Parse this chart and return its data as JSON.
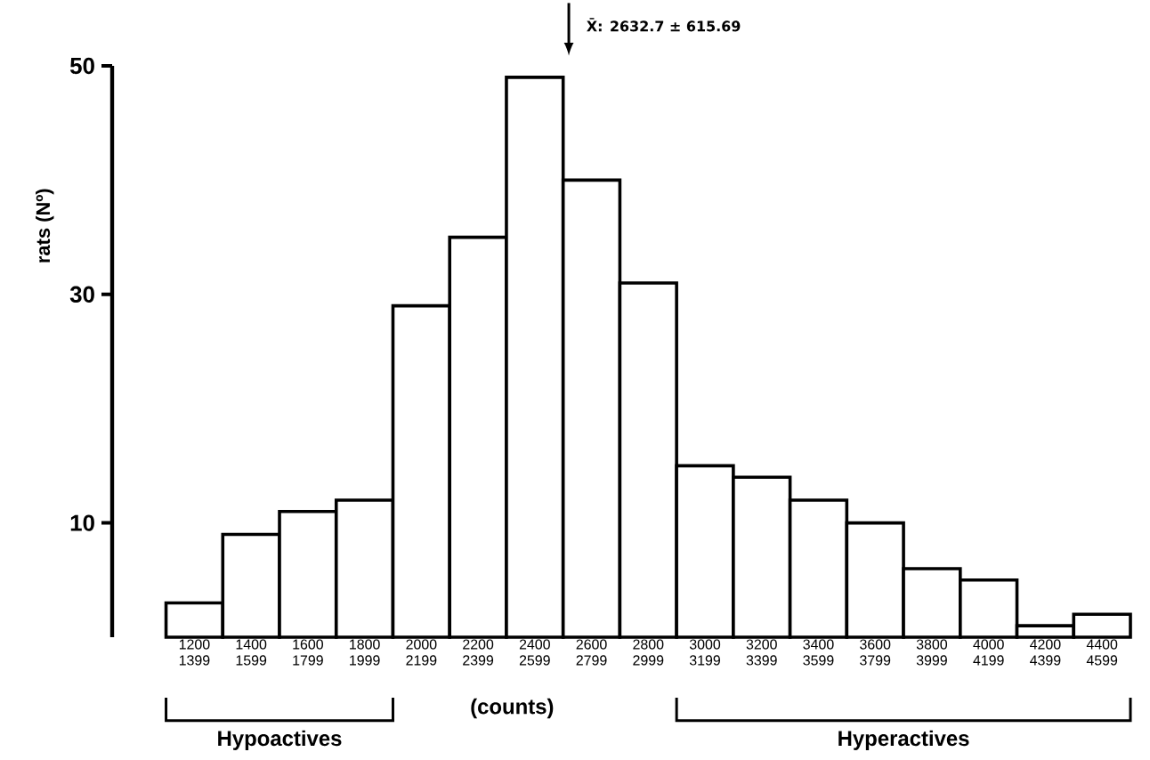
{
  "chart_data": {
    "type": "bar",
    "ylabel": "rats (Nº)",
    "xlabel": "(counts)",
    "categories": [
      "1200 1399",
      "1400 1599",
      "1600 1799",
      "1800 1999",
      "2000 2199",
      "2200 2399",
      "2400 2599",
      "2600 2799",
      "2800 2999",
      "3000 3199",
      "3200 3399",
      "3400 3599",
      "3600 3799",
      "3800 3999",
      "4000 4199",
      "4200 4399",
      "4400 4599"
    ],
    "values": [
      3,
      9,
      11,
      12,
      29,
      35,
      49,
      40,
      31,
      15,
      14,
      12,
      10,
      6,
      5,
      1,
      2
    ],
    "color": "#ffffff",
    "ylim": [
      0,
      50
    ],
    "yticks": [
      10,
      30,
      50
    ],
    "annotations": [
      "Hypoactives",
      "Hyperactives",
      "X̄: 2632.7 ± 615.69"
    ]
  }
}
